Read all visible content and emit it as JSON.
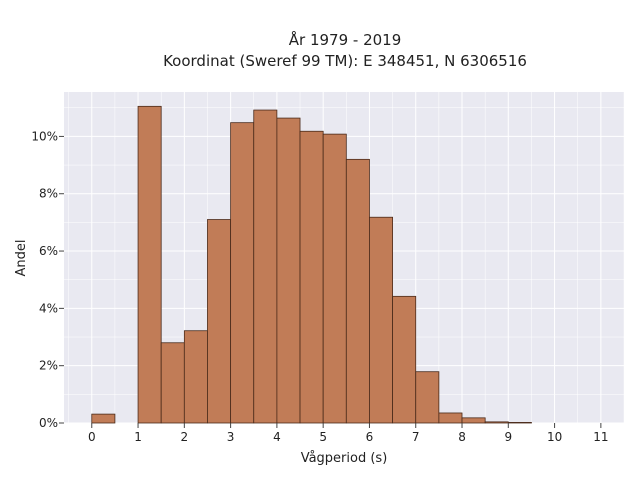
{
  "chart_data": {
    "type": "bar",
    "title_lines": [
      "År 1979 - 2019",
      "Koordinat (Sweref 99 TM): E 348451, N 6306516"
    ],
    "xlabel": "Vågperiod (s)",
    "ylabel": "Andel",
    "xlim": [
      -0.6,
      11.5
    ],
    "ylim": [
      0,
      0.1155
    ],
    "x_ticks": [
      0,
      1,
      2,
      3,
      4,
      5,
      6,
      7,
      8,
      9,
      10,
      11
    ],
    "y_ticks": [
      0,
      0.02,
      0.04,
      0.06,
      0.08,
      0.1
    ],
    "y_tick_labels": [
      "0%",
      "2%",
      "4%",
      "6%",
      "8%",
      "10%"
    ],
    "bin_width": 0.5,
    "bins": [
      {
        "x0": 0.0,
        "value": 0.0031
      },
      {
        "x0": 0.5,
        "value": 0.0
      },
      {
        "x0": 1.0,
        "value": 0.1105
      },
      {
        "x0": 1.5,
        "value": 0.028
      },
      {
        "x0": 2.0,
        "value": 0.0322
      },
      {
        "x0": 2.5,
        "value": 0.071
      },
      {
        "x0": 3.0,
        "value": 0.1048
      },
      {
        "x0": 3.5,
        "value": 0.1092
      },
      {
        "x0": 4.0,
        "value": 0.1064
      },
      {
        "x0": 4.5,
        "value": 0.1018
      },
      {
        "x0": 5.0,
        "value": 0.1008
      },
      {
        "x0": 5.5,
        "value": 0.092
      },
      {
        "x0": 6.0,
        "value": 0.0718
      },
      {
        "x0": 6.5,
        "value": 0.0442
      },
      {
        "x0": 7.0,
        "value": 0.0179
      },
      {
        "x0": 7.5,
        "value": 0.0035
      },
      {
        "x0": 8.0,
        "value": 0.0018
      },
      {
        "x0": 8.5,
        "value": 0.0004
      },
      {
        "x0": 9.0,
        "value": 0.0002
      }
    ],
    "grid": true,
    "colors": {
      "bar_fill": "#c17c57",
      "bar_edge": "#4a2a1a",
      "plot_bg": "#e9e9f1",
      "grid": "#ffffff"
    }
  }
}
